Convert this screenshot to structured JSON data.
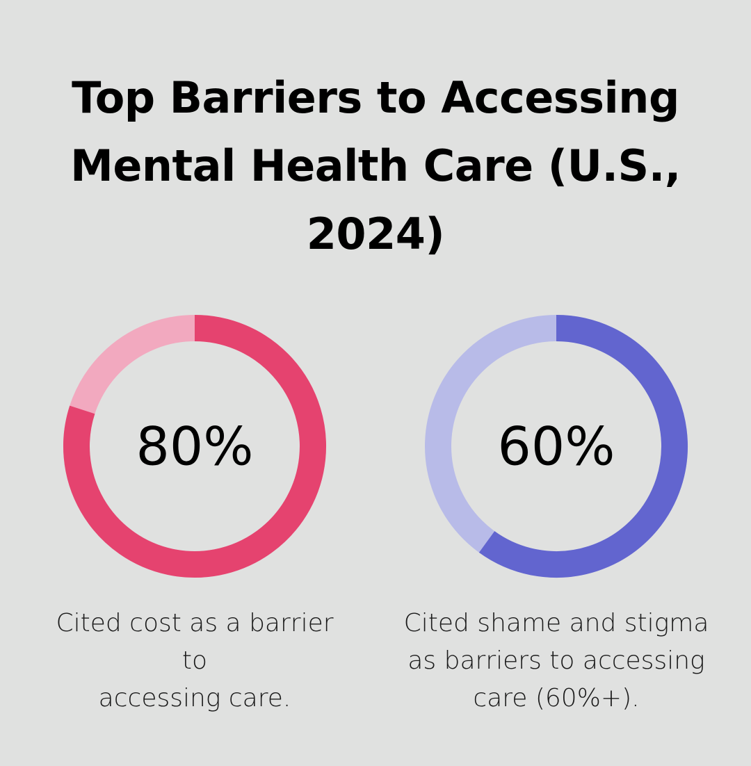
{
  "title_lines": [
    "Top Barriers to Accessing",
    "Mental Health Care (U.S.,",
    "2024)"
  ],
  "chart_data": [
    {
      "type": "pie",
      "value": 80,
      "value_label": "80%",
      "caption_lines": [
        "Cited cost as a barrier to",
        "accessing care."
      ],
      "colors": {
        "filled": "#e5436f",
        "remainder": "#f2a9bf"
      }
    },
    {
      "type": "pie",
      "value": 60,
      "value_label": "60%",
      "caption_lines": [
        "Cited shame and stigma",
        "as barriers to accessing",
        "care (60%+)."
      ],
      "colors": {
        "filled": "#6265cf",
        "remainder": "#b8bbe8"
      }
    }
  ]
}
